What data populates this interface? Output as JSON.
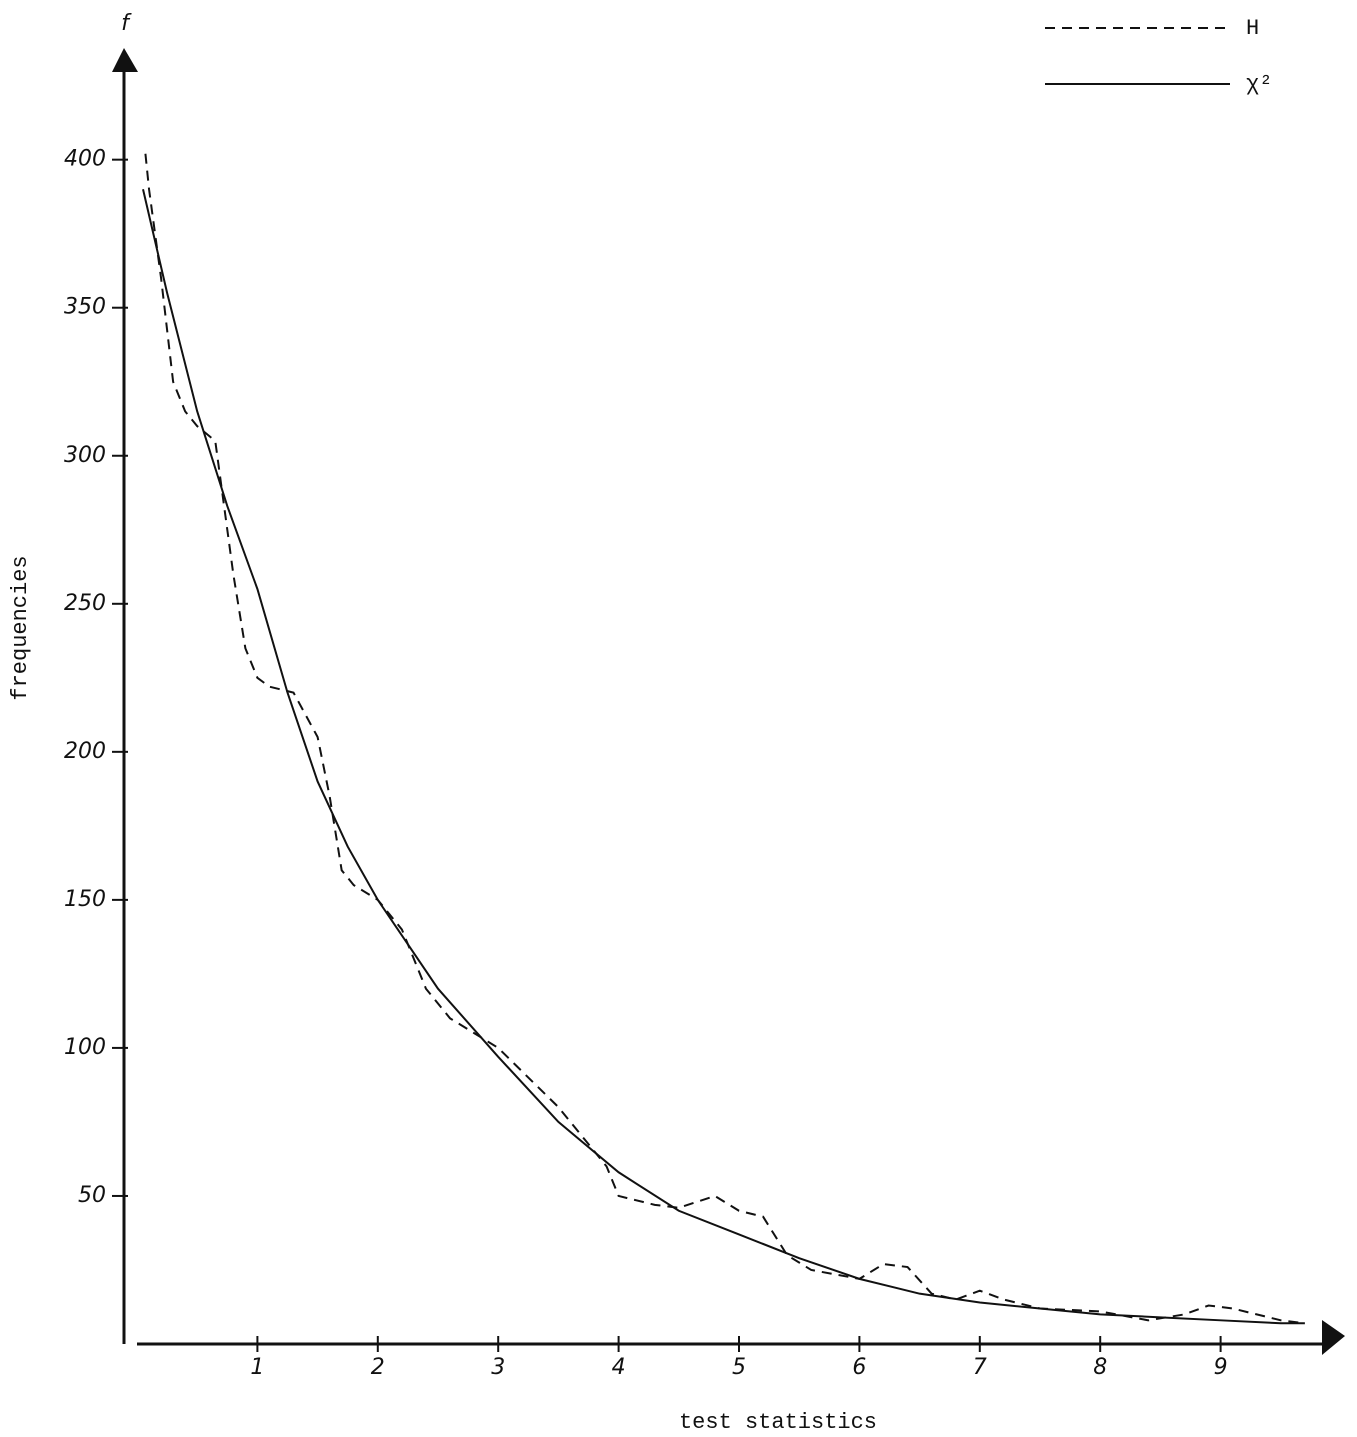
{
  "chart_data": {
    "type": "line",
    "x_label": "test statistics",
    "y_label": "frequencies",
    "y_symbol": "f",
    "xlim": [
      0,
      10
    ],
    "ylim": [
      0,
      434
    ],
    "xticks": [
      1,
      2,
      3,
      4,
      5,
      6,
      7,
      8,
      9
    ],
    "yticks": [
      50,
      100,
      150,
      200,
      250,
      300,
      350,
      400
    ],
    "grid": false,
    "legend": "top-right",
    "series": [
      {
        "name": "H",
        "color": "#111111",
        "line_style": "dashed",
        "x": [
          0.07,
          0.1,
          0.2,
          0.3,
          0.4,
          0.5,
          0.65,
          0.8,
          0.9,
          1.0,
          1.1,
          1.3,
          1.5,
          1.6,
          1.7,
          1.8,
          2.0,
          2.2,
          2.4,
          2.6,
          2.8,
          3.0,
          3.2,
          3.5,
          3.7,
          3.9,
          4.0,
          4.3,
          4.5,
          4.8,
          5.0,
          5.2,
          5.4,
          5.6,
          6.0,
          6.2,
          6.4,
          6.6,
          6.8,
          7.0,
          7.2,
          7.5,
          8.0,
          8.4,
          8.7,
          8.9,
          9.1,
          9.5,
          9.7
        ],
        "values": [
          402,
          390,
          360,
          325,
          315,
          310,
          305,
          260,
          235,
          225,
          222,
          220,
          205,
          185,
          160,
          155,
          150,
          140,
          120,
          110,
          105,
          100,
          92,
          80,
          70,
          60,
          50,
          47,
          46,
          50,
          45,
          43,
          30,
          25,
          22,
          27,
          26,
          17,
          15,
          18,
          15,
          12,
          11,
          8,
          10,
          13,
          12,
          8,
          7
        ]
      },
      {
        "name": "χ²",
        "color": "#111111",
        "line_style": "solid",
        "x": [
          0.05,
          0.25,
          0.5,
          0.75,
          1.0,
          1.25,
          1.5,
          1.75,
          2.0,
          2.5,
          3.0,
          3.5,
          4.0,
          4.5,
          5.0,
          5.5,
          6.0,
          6.5,
          7.0,
          7.5,
          8.0,
          8.5,
          9.0,
          9.5,
          9.7
        ],
        "values": [
          390,
          355,
          315,
          283,
          255,
          220,
          190,
          168,
          150,
          120,
          97,
          75,
          58,
          45,
          37,
          29,
          22,
          17,
          14,
          12,
          10,
          9,
          8,
          7,
          7
        ]
      }
    ]
  }
}
